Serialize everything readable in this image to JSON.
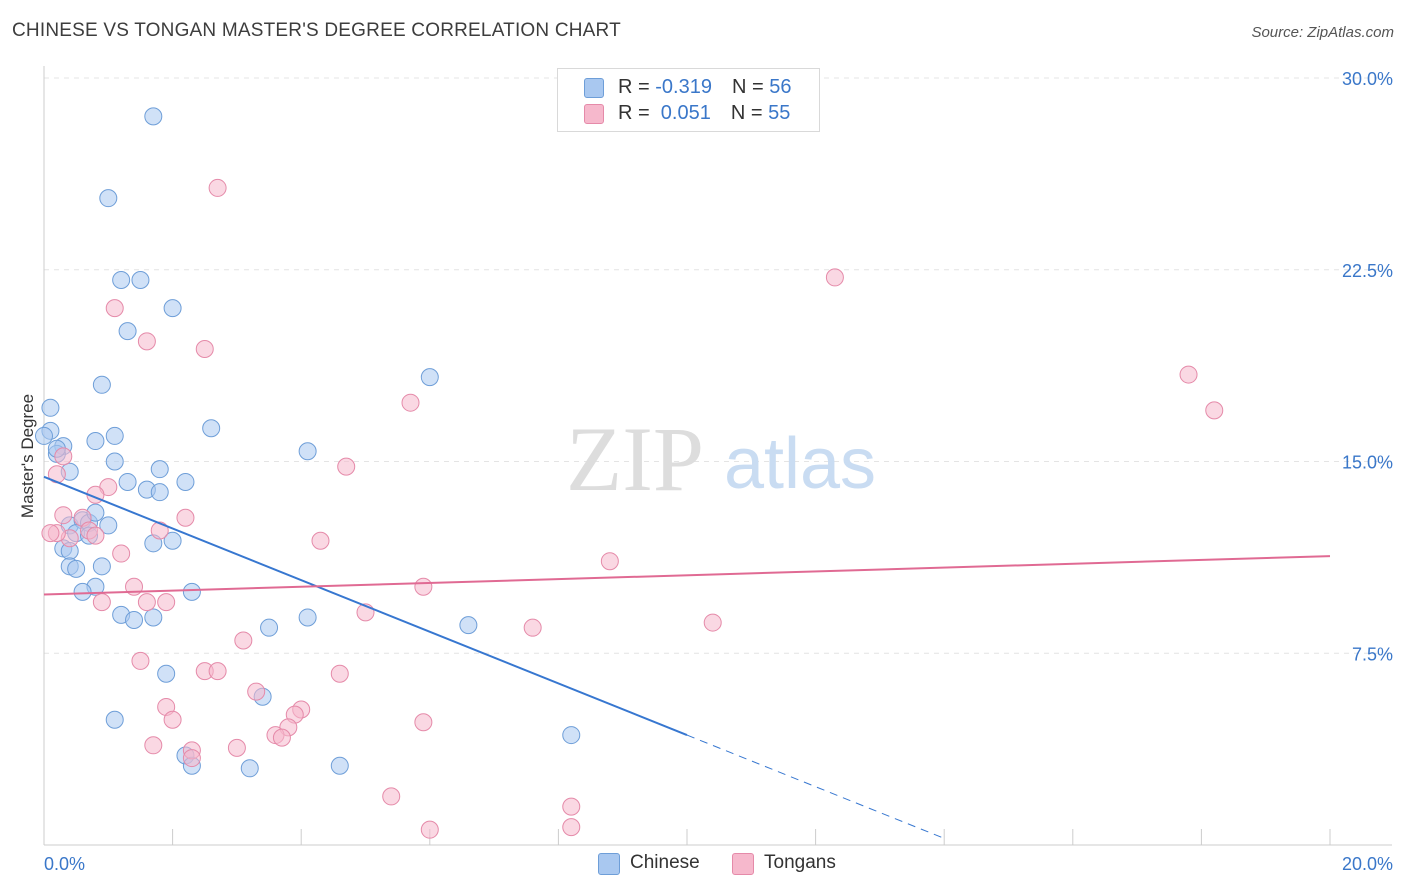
{
  "header": {
    "title": "CHINESE VS TONGAN MASTER'S DEGREE CORRELATION CHART",
    "source": "Source: ZipAtlas.com"
  },
  "watermark": {
    "zip": "ZIP",
    "atlas": "atlas"
  },
  "legend": {
    "rows": [
      {
        "r_label": "R = ",
        "r_value": "-0.319",
        "n_label": "N = ",
        "n_value": "56",
        "color": "#a9c8f0"
      },
      {
        "r_label": "R = ",
        "r_value": " 0.051",
        "n_label": "N = ",
        "n_value": "55",
        "color": "#f6b8cc"
      }
    ]
  },
  "bottom_legend": {
    "chinese": "Chinese",
    "tongans": "Tongans"
  },
  "colors": {
    "chinese_fill": "#a9c8f0",
    "chinese_stroke": "#6e9ed8",
    "chinese_line": "#3777d0",
    "tongan_fill": "#f6b8cc",
    "tongan_stroke": "#e58aa9",
    "tongan_line": "#e06a93",
    "tick_label": "#3a77c9",
    "grid": "#e4e4e4"
  },
  "chart_data": {
    "type": "scatter",
    "title": "CHINESE VS TONGAN MASTER'S DEGREE CORRELATION CHART",
    "xlabel": "",
    "ylabel": "Master's Degree",
    "xlim": [
      0,
      20
    ],
    "ylim": [
      0,
      30
    ],
    "x_tick_labels": [
      "0.0%",
      "20.0%"
    ],
    "y_ticks": [
      7.5,
      15.0,
      22.5,
      30.0
    ],
    "y_tick_labels": [
      "7.5%",
      "15.0%",
      "22.5%",
      "30.0%"
    ],
    "grid": true,
    "legend_position": "top-center",
    "series": [
      {
        "name": "Chinese",
        "trend": {
          "x0": 0,
          "y0": 14.4,
          "x1": 10.0,
          "y1": 4.3,
          "solid_until": 10.0,
          "dashed_until": 14.0
        },
        "points": [
          [
            1.7,
            28.5
          ],
          [
            1.0,
            25.3
          ],
          [
            1.2,
            22.1
          ],
          [
            1.5,
            22.1
          ],
          [
            2.0,
            21.0
          ],
          [
            1.3,
            20.1
          ],
          [
            6.0,
            18.3
          ],
          [
            0.9,
            18.0
          ],
          [
            0.1,
            17.1
          ],
          [
            0.1,
            16.2
          ],
          [
            2.6,
            16.3
          ],
          [
            0.3,
            15.6
          ],
          [
            0.8,
            15.8
          ],
          [
            1.1,
            16.0
          ],
          [
            4.1,
            15.4
          ],
          [
            0.2,
            15.3
          ],
          [
            1.1,
            15.0
          ],
          [
            1.8,
            14.7
          ],
          [
            0.4,
            14.6
          ],
          [
            1.3,
            14.2
          ],
          [
            2.2,
            14.2
          ],
          [
            1.6,
            13.9
          ],
          [
            1.8,
            13.8
          ],
          [
            0.4,
            12.5
          ],
          [
            0.6,
            12.7
          ],
          [
            0.7,
            12.6
          ],
          [
            0.8,
            13.0
          ],
          [
            1.0,
            12.5
          ],
          [
            0.5,
            12.2
          ],
          [
            0.7,
            12.1
          ],
          [
            1.7,
            11.8
          ],
          [
            2.0,
            11.9
          ],
          [
            0.3,
            11.6
          ],
          [
            0.4,
            11.5
          ],
          [
            0.4,
            10.9
          ],
          [
            0.5,
            10.8
          ],
          [
            0.9,
            10.9
          ],
          [
            0.8,
            10.1
          ],
          [
            0.6,
            9.9
          ],
          [
            2.3,
            9.9
          ],
          [
            1.2,
            9.0
          ],
          [
            1.7,
            8.9
          ],
          [
            1.4,
            8.8
          ],
          [
            4.1,
            8.9
          ],
          [
            3.5,
            8.5
          ],
          [
            6.6,
            8.6
          ],
          [
            1.9,
            6.7
          ],
          [
            3.4,
            5.8
          ],
          [
            1.1,
            4.9
          ],
          [
            2.2,
            3.5
          ],
          [
            2.3,
            3.1
          ],
          [
            3.2,
            3.0
          ],
          [
            4.6,
            3.1
          ],
          [
            8.2,
            4.3
          ],
          [
            0.0,
            16.0
          ],
          [
            0.2,
            15.5
          ]
        ]
      },
      {
        "name": "Tongans",
        "trend": {
          "x0": 0,
          "y0": 9.8,
          "x1": 20.0,
          "y1": 11.3
        },
        "points": [
          [
            2.7,
            25.7
          ],
          [
            12.3,
            22.2
          ],
          [
            1.1,
            21.0
          ],
          [
            1.6,
            19.7
          ],
          [
            2.5,
            19.4
          ],
          [
            17.8,
            18.4
          ],
          [
            5.7,
            17.3
          ],
          [
            18.2,
            17.0
          ],
          [
            0.3,
            15.2
          ],
          [
            4.7,
            14.8
          ],
          [
            0.2,
            14.5
          ],
          [
            1.0,
            14.0
          ],
          [
            0.8,
            13.7
          ],
          [
            0.3,
            12.9
          ],
          [
            0.6,
            12.8
          ],
          [
            2.2,
            12.8
          ],
          [
            1.8,
            12.3
          ],
          [
            0.7,
            12.3
          ],
          [
            0.8,
            12.1
          ],
          [
            0.4,
            12.0
          ],
          [
            0.2,
            12.2
          ],
          [
            4.3,
            11.9
          ],
          [
            1.2,
            11.4
          ],
          [
            8.8,
            11.1
          ],
          [
            1.4,
            10.1
          ],
          [
            5.9,
            10.1
          ],
          [
            0.9,
            9.5
          ],
          [
            1.6,
            9.5
          ],
          [
            1.9,
            9.5
          ],
          [
            5.0,
            9.1
          ],
          [
            10.4,
            8.7
          ],
          [
            7.6,
            8.5
          ],
          [
            3.1,
            8.0
          ],
          [
            1.5,
            7.2
          ],
          [
            2.5,
            6.8
          ],
          [
            2.7,
            6.8
          ],
          [
            4.6,
            6.7
          ],
          [
            3.3,
            6.0
          ],
          [
            1.9,
            5.4
          ],
          [
            4.0,
            5.3
          ],
          [
            3.9,
            5.1
          ],
          [
            2.0,
            4.9
          ],
          [
            5.9,
            4.8
          ],
          [
            3.8,
            4.6
          ],
          [
            3.6,
            4.3
          ],
          [
            3.7,
            4.2
          ],
          [
            1.7,
            3.9
          ],
          [
            2.3,
            3.7
          ],
          [
            3.0,
            3.8
          ],
          [
            2.3,
            3.4
          ],
          [
            5.4,
            1.9
          ],
          [
            8.2,
            1.5
          ],
          [
            6.0,
            0.6
          ],
          [
            8.2,
            0.7
          ],
          [
            0.1,
            12.2
          ]
        ]
      }
    ]
  }
}
